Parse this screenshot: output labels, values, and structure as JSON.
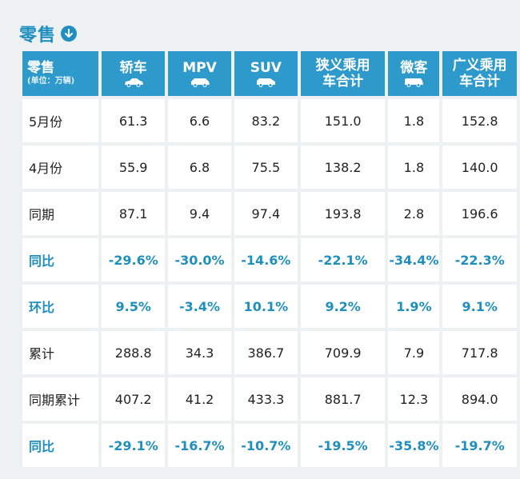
{
  "title": "零售",
  "colors": {
    "accent": "#2d9acb",
    "highlight_text": "#1f8fbf"
  },
  "header": {
    "corner_label": "零售",
    "unit": "(单位：万辆)",
    "columns": [
      {
        "label": "轿车",
        "icon": "sedan-car-icon"
      },
      {
        "label": "MPV",
        "icon": "mpv-car-icon"
      },
      {
        "label": "SUV",
        "icon": "suv-car-icon"
      },
      {
        "label": "狭义乘用车合计"
      },
      {
        "label": "微客",
        "icon": "minivan-icon"
      },
      {
        "label": "广义乘用车合计"
      }
    ]
  },
  "rows": [
    {
      "label": "5月份",
      "values": [
        "61.3",
        "6.6",
        "83.2",
        "151.0",
        "1.8",
        "152.8"
      ],
      "highlight": false
    },
    {
      "label": "4月份",
      "values": [
        "55.9",
        "6.8",
        "75.5",
        "138.2",
        "1.8",
        "140.0"
      ],
      "highlight": false
    },
    {
      "label": "同期",
      "values": [
        "87.1",
        "9.4",
        "97.4",
        "193.8",
        "2.8",
        "196.6"
      ],
      "highlight": false
    },
    {
      "label": "同比",
      "values": [
        "-29.6%",
        "-30.0%",
        "-14.6%",
        "-22.1%",
        "-34.4%",
        "-22.3%"
      ],
      "highlight": true
    },
    {
      "label": "环比",
      "values": [
        "9.5%",
        "-3.4%",
        "10.1%",
        "9.2%",
        "1.9%",
        "9.1%"
      ],
      "highlight": true
    },
    {
      "label": "累计",
      "values": [
        "288.8",
        "34.3",
        "386.7",
        "709.9",
        "7.9",
        "717.8"
      ],
      "highlight": false
    },
    {
      "label": "同期累计",
      "values": [
        "407.2",
        "41.2",
        "433.3",
        "881.7",
        "12.3",
        "894.0"
      ],
      "highlight": false
    },
    {
      "label": "同比",
      "values": [
        "-29.1%",
        "-16.7%",
        "-10.7%",
        "-19.5%",
        "-35.8%",
        "-19.7%"
      ],
      "highlight": true
    }
  ]
}
